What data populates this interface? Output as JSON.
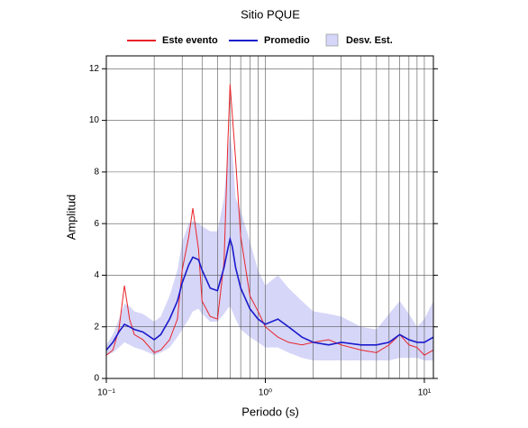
{
  "chart_data": {
    "type": "line",
    "title": "Sitio PQUE",
    "xlabel": "Periodo (s)",
    "ylabel": "Amplitud",
    "xscale": "log",
    "grid": true,
    "xlim": [
      0.1,
      11.4
    ],
    "ylim": [
      0,
      12.5
    ],
    "xticks": [
      {
        "value": 0.1,
        "label": "10⁻¹"
      },
      {
        "value": 1,
        "label": "10⁰"
      },
      {
        "value": 10,
        "label": "10¹"
      }
    ],
    "xminor_ticks": [
      0.2,
      0.3,
      0.4,
      0.5,
      0.6,
      0.7,
      0.8,
      0.9,
      2,
      3,
      4,
      5,
      6,
      7,
      8,
      9
    ],
    "yticks": [
      0,
      2,
      4,
      6,
      8,
      10,
      12
    ],
    "x": [
      0.1,
      0.11,
      0.12,
      0.13,
      0.14,
      0.15,
      0.17,
      0.2,
      0.22,
      0.25,
      0.28,
      0.3,
      0.33,
      0.35,
      0.38,
      0.4,
      0.45,
      0.5,
      0.55,
      0.58,
      0.6,
      0.62,
      0.65,
      0.7,
      0.8,
      0.9,
      1.0,
      1.2,
      1.4,
      1.7,
      2,
      2.5,
      3,
      4,
      5,
      6,
      7,
      8,
      9,
      10,
      11.4
    ],
    "series": [
      {
        "name": "Este evento",
        "color": "#e8242a",
        "values": [
          0.9,
          1.1,
          1.9,
          3.6,
          2.3,
          1.7,
          1.5,
          1.0,
          1.1,
          1.5,
          2.3,
          4.2,
          5.5,
          6.6,
          5.0,
          3.0,
          2.4,
          2.3,
          4.5,
          9.0,
          11.4,
          10.2,
          8.5,
          5.5,
          3.2,
          2.6,
          2.0,
          1.6,
          1.4,
          1.3,
          1.4,
          1.5,
          1.3,
          1.1,
          1.0,
          1.3,
          1.7,
          1.3,
          1.2,
          0.9,
          1.1
        ]
      },
      {
        "name": "Promedio",
        "color": "#1a1acc",
        "values": [
          1.1,
          1.4,
          1.8,
          2.1,
          2.0,
          1.9,
          1.8,
          1.5,
          1.7,
          2.3,
          3.0,
          3.7,
          4.4,
          4.7,
          4.6,
          4.2,
          3.5,
          3.4,
          4.3,
          5.0,
          5.4,
          5.1,
          4.3,
          3.5,
          2.7,
          2.3,
          2.1,
          2.3,
          2.0,
          1.6,
          1.4,
          1.3,
          1.4,
          1.3,
          1.3,
          1.4,
          1.7,
          1.5,
          1.4,
          1.4,
          1.6
        ]
      },
      {
        "name": "Desv. Est.",
        "color": "#d6d6f8",
        "lower": [
          0.9,
          1.0,
          1.2,
          1.4,
          1.3,
          1.2,
          1.1,
          0.9,
          1.0,
          1.2,
          1.6,
          1.9,
          2.3,
          2.6,
          2.7,
          2.5,
          2.2,
          2.2,
          2.5,
          2.7,
          2.8,
          2.6,
          2.3,
          1.9,
          1.6,
          1.4,
          1.2,
          1.2,
          1.0,
          0.8,
          0.7,
          0.7,
          0.7,
          0.7,
          0.7,
          0.7,
          0.8,
          0.8,
          0.8,
          0.7,
          0.7
        ],
        "upper": [
          1.3,
          1.7,
          2.3,
          2.9,
          2.8,
          2.6,
          2.5,
          2.2,
          2.4,
          3.2,
          4.2,
          5.3,
          6.0,
          6.1,
          6.0,
          5.9,
          5.7,
          5.7,
          7.0,
          8.8,
          9.5,
          8.8,
          7.0,
          6.5,
          5.3,
          4.2,
          3.6,
          4.0,
          3.5,
          3.0,
          2.6,
          2.5,
          2.4,
          2.0,
          1.9,
          2.5,
          3.0,
          2.5,
          2.0,
          2.3,
          3.0
        ]
      }
    ]
  }
}
